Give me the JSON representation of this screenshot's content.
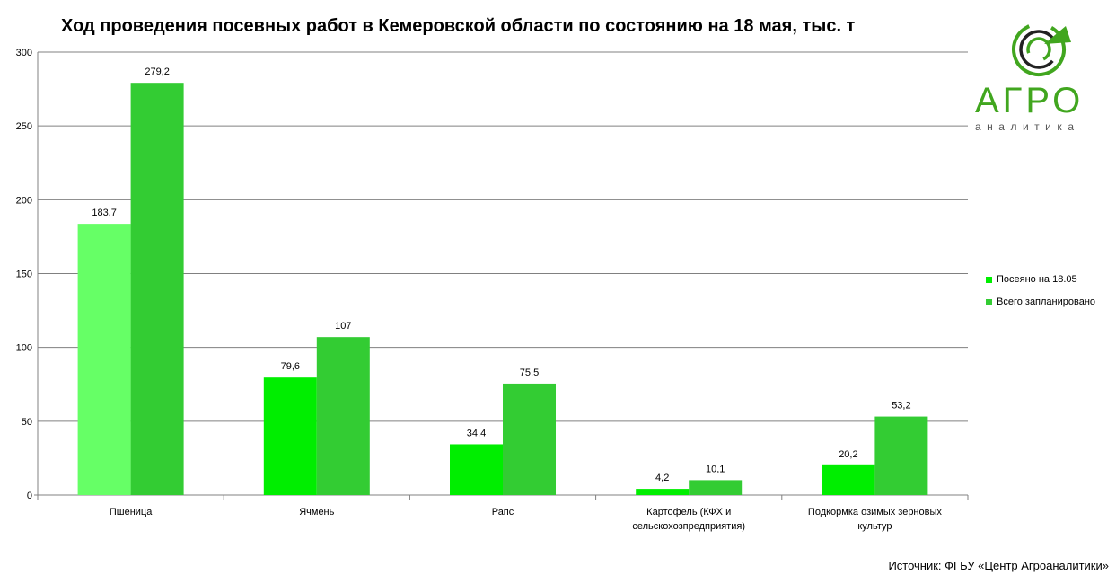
{
  "title": "Ход проведения посевных работ в Кемеровской области по состоянию на 18 мая, тыс. т",
  "source": "Источник: ФГБУ «Центр Агроаналитики»",
  "logo": {
    "word": "АГРО",
    "sub": "аналитика",
    "color": "#41a61f"
  },
  "chart_data": {
    "type": "bar",
    "categories": [
      "Пшеница",
      "Ячмень",
      "Рапс",
      "Картофель (КФХ и сельскохозпредприятия)",
      "Подкормка озимых зерновых культур"
    ],
    "category_lines": [
      [
        "Пшеница"
      ],
      [
        "Ячмень"
      ],
      [
        "Рапс"
      ],
      [
        "Картофель (КФХ и",
        "сельскохозпредприятия)"
      ],
      [
        "Подкормка озимых зерновых",
        "культур"
      ]
    ],
    "series": [
      {
        "name": "Посеяно на 18.05",
        "values": [
          183.7,
          79.6,
          34.4,
          4.2,
          20.2
        ],
        "labels": [
          "183,7",
          "79,6",
          "34,4",
          "4,2",
          "20,2"
        ],
        "color": "#00ee00"
      },
      {
        "name": "Всего запланировано",
        "values": [
          279.2,
          107,
          75.5,
          10.1,
          53.2
        ],
        "labels": [
          "279,2",
          "107",
          "75,5",
          "10,1",
          "53,2"
        ],
        "color": "#33cc33"
      }
    ],
    "first_bar_color": "#66ff66",
    "yticks": [
      0,
      50,
      100,
      150,
      200,
      250,
      300
    ],
    "ylim": [
      0,
      300
    ],
    "grid": true,
    "legend": "right"
  }
}
